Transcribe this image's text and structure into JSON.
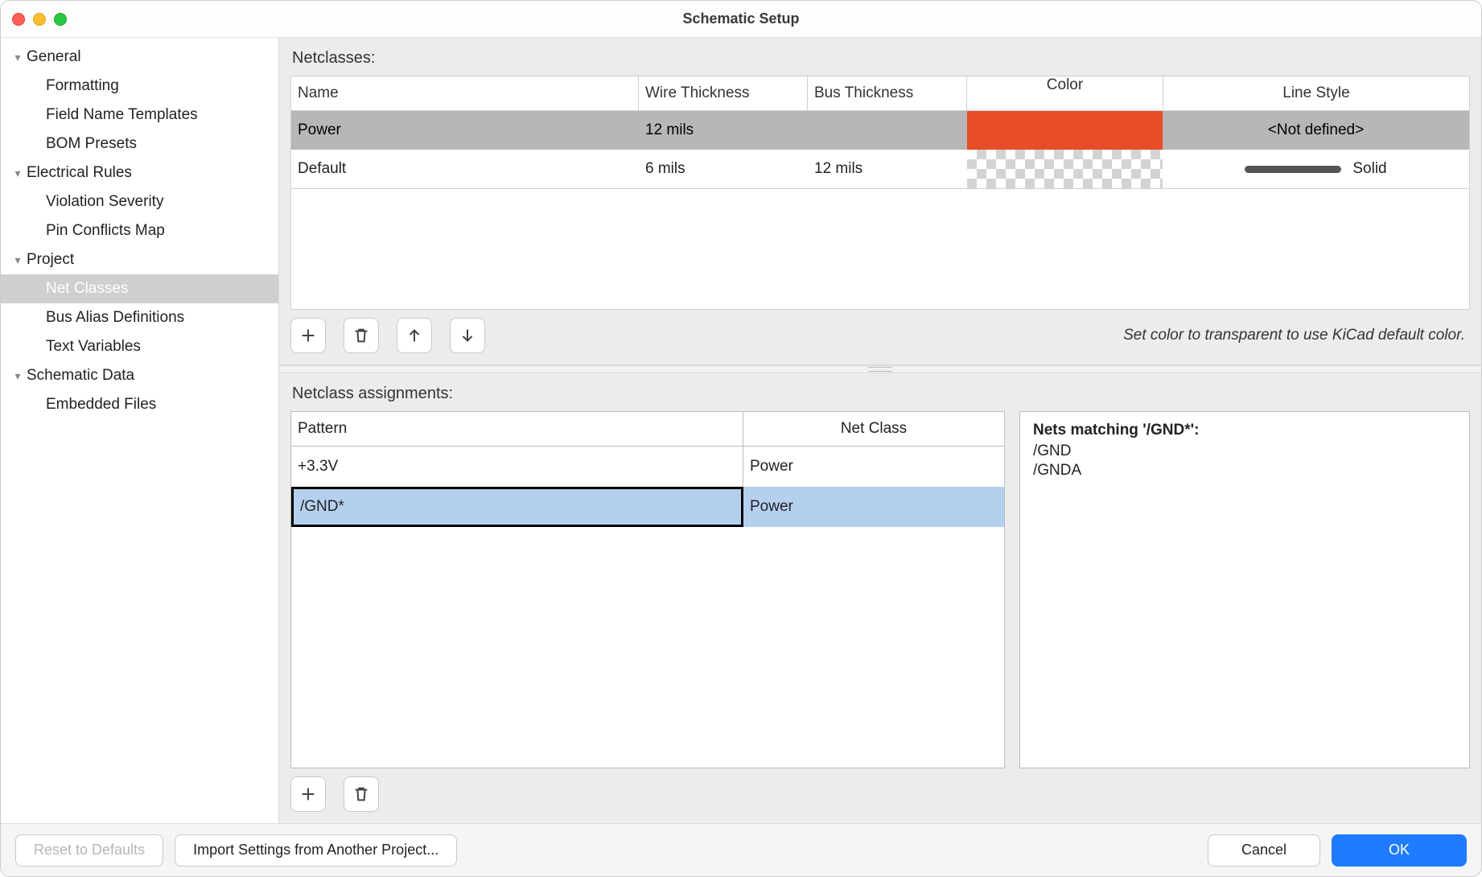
{
  "window": {
    "title": "Schematic Setup"
  },
  "sidebar": {
    "groups": [
      {
        "label": "General",
        "items": [
          "Formatting",
          "Field Name Templates",
          "BOM Presets"
        ]
      },
      {
        "label": "Electrical Rules",
        "items": [
          "Violation Severity",
          "Pin Conflicts Map"
        ]
      },
      {
        "label": "Project",
        "items": [
          "Net Classes",
          "Bus Alias Definitions",
          "Text Variables"
        ],
        "selected_index": 0
      },
      {
        "label": "Schematic Data",
        "items": [
          "Embedded Files"
        ]
      }
    ]
  },
  "netclasses": {
    "section_label": "Netclasses:",
    "columns": [
      "Name",
      "Wire Thickness",
      "Bus Thickness",
      "Color",
      "Line Style"
    ],
    "rows": [
      {
        "name": "Power",
        "wire": "12 mils",
        "bus": "",
        "color": "#e84d28",
        "style": "<Not defined>",
        "selected": true,
        "show_bar": false
      },
      {
        "name": "Default",
        "wire": "6 mils",
        "bus": "12 mils",
        "color": "transparent-checker",
        "style": "Solid",
        "selected": false,
        "show_bar": true
      }
    ],
    "hint": "Set color to transparent to use KiCad default color."
  },
  "assignments": {
    "section_label": "Netclass assignments:",
    "columns": [
      "Pattern",
      "Net Class"
    ],
    "rows": [
      {
        "pattern": "+3.3V",
        "netclass": "Power",
        "selected": false
      },
      {
        "pattern": "/GND*",
        "netclass": "Power",
        "selected": true
      }
    ],
    "nets_box": {
      "heading": "Nets matching '/GND*':",
      "nets": [
        "/GND",
        "/GNDA"
      ]
    }
  },
  "footer": {
    "reset": "Reset to Defaults",
    "import": "Import Settings from Another Project...",
    "cancel": "Cancel",
    "ok": "OK"
  }
}
